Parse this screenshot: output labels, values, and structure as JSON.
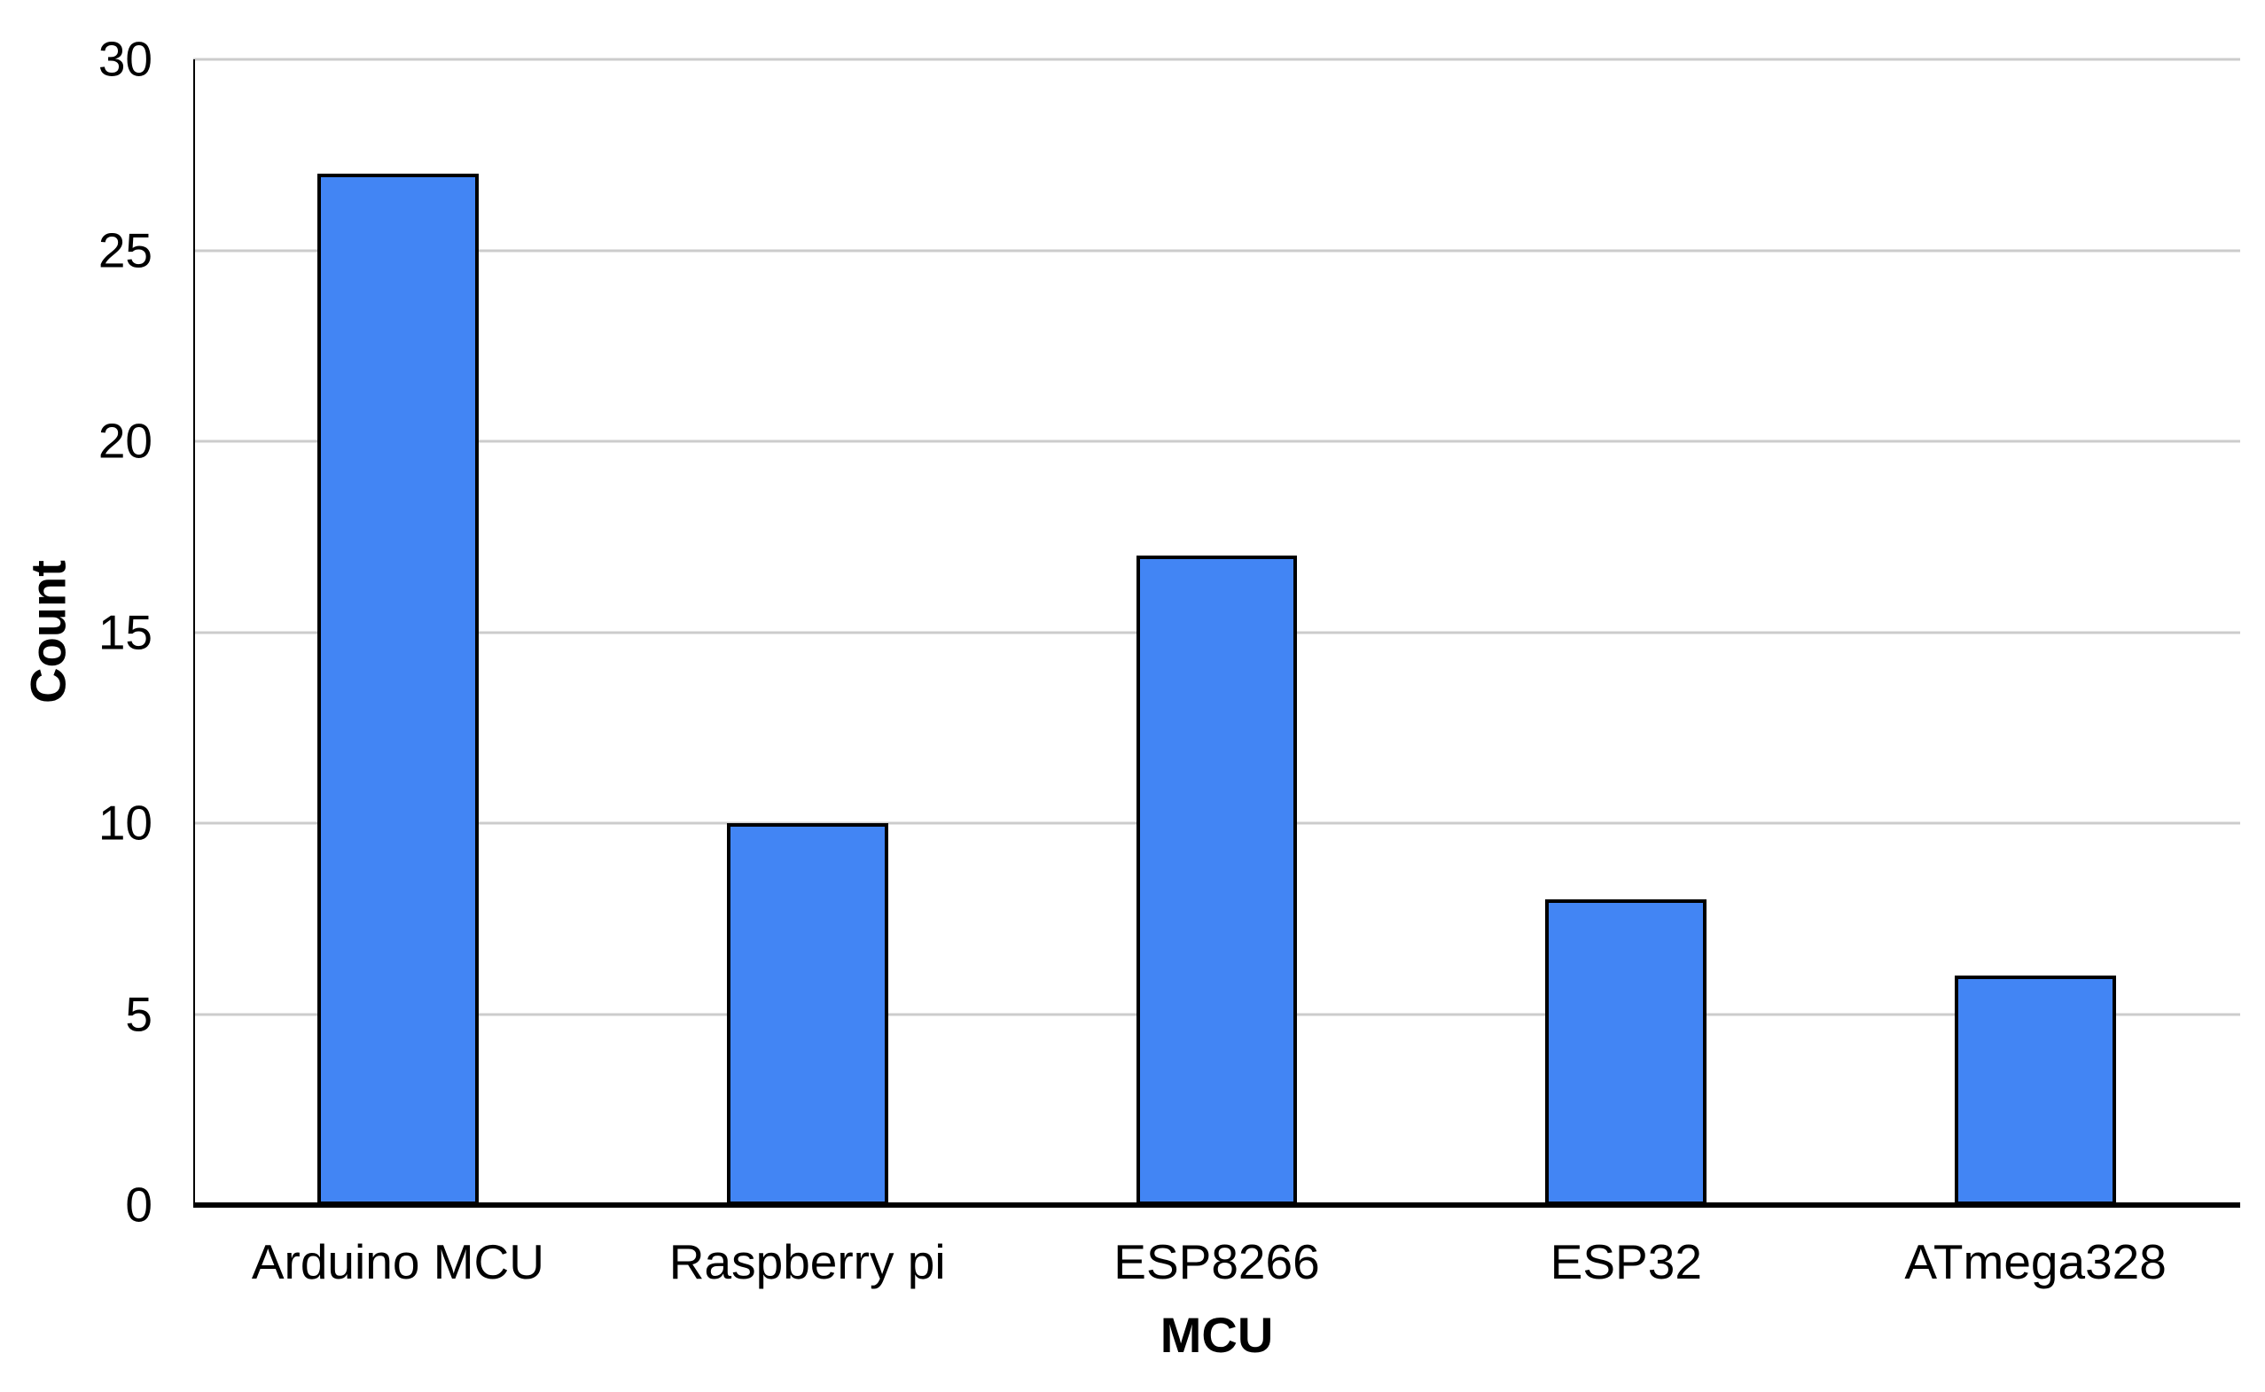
{
  "chart_data": {
    "type": "bar",
    "title": "",
    "categories": [
      "Arduino MCU",
      "Raspberry pi",
      "ESP8266",
      "ESP32",
      "ATmega328"
    ],
    "values": [
      27,
      10,
      17,
      8,
      6
    ],
    "xlabel": "MCU",
    "ylabel": "Count",
    "ylim": [
      0,
      30
    ],
    "yticks": [
      0,
      5,
      10,
      15,
      20,
      25,
      30
    ],
    "grid": true,
    "legend_position": "none",
    "colors": {
      "bar_fill": "#4285F4",
      "bar_border": "#000000",
      "gridline": "#cccccc",
      "y_axis_line": "#000000",
      "x_axis_line": "#000000",
      "text": "#000000",
      "background": "#ffffff"
    }
  }
}
